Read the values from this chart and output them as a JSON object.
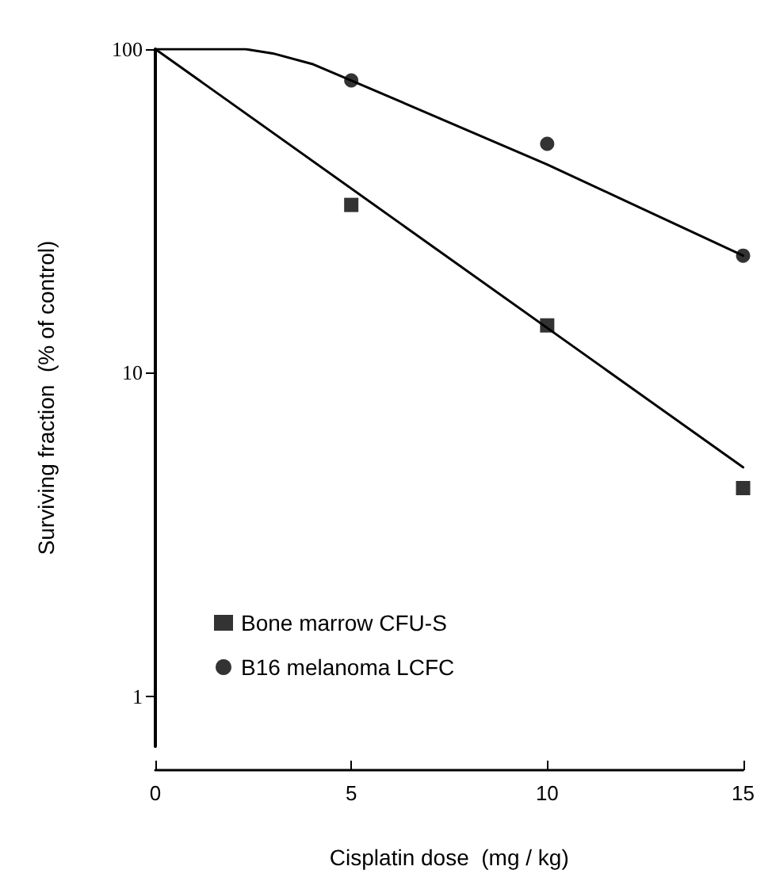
{
  "chart_data": {
    "type": "scatter",
    "xlabel": "Cisplatin dose  (mg / kg)",
    "ylabel": "Surviving fraction  (% of control)",
    "log": "y",
    "xlim": [
      0,
      15
    ],
    "xticks": [
      0,
      5,
      10,
      15
    ],
    "ylim": [
      0.7,
      100
    ],
    "yticks": [
      1,
      10,
      100
    ],
    "grid": false,
    "legend": "bottom left",
    "series": [
      {
        "name": "Bone marrow CFU-S",
        "marker": "square",
        "color": "#000000",
        "x": [
          5,
          10,
          15
        ],
        "values": [
          33,
          14,
          4.4
        ]
      },
      {
        "name": "B16 melanoma LCFC",
        "marker": "circle",
        "color": "#000000",
        "x": [
          5,
          10,
          15
        ],
        "values": [
          80,
          51,
          23
        ]
      },
      {
        "type": "line",
        "marker": "none",
        "color": "#000000",
        "x": [
          0,
          15
        ],
        "values": [
          100,
          5.1
        ]
      },
      {
        "type": "line",
        "marker": "none",
        "color": "#000000",
        "x": [
          0,
          2.3,
          3,
          4,
          5,
          10,
          15
        ],
        "values": [
          100,
          100,
          97,
          90,
          80,
          44,
          23
        ]
      }
    ]
  }
}
